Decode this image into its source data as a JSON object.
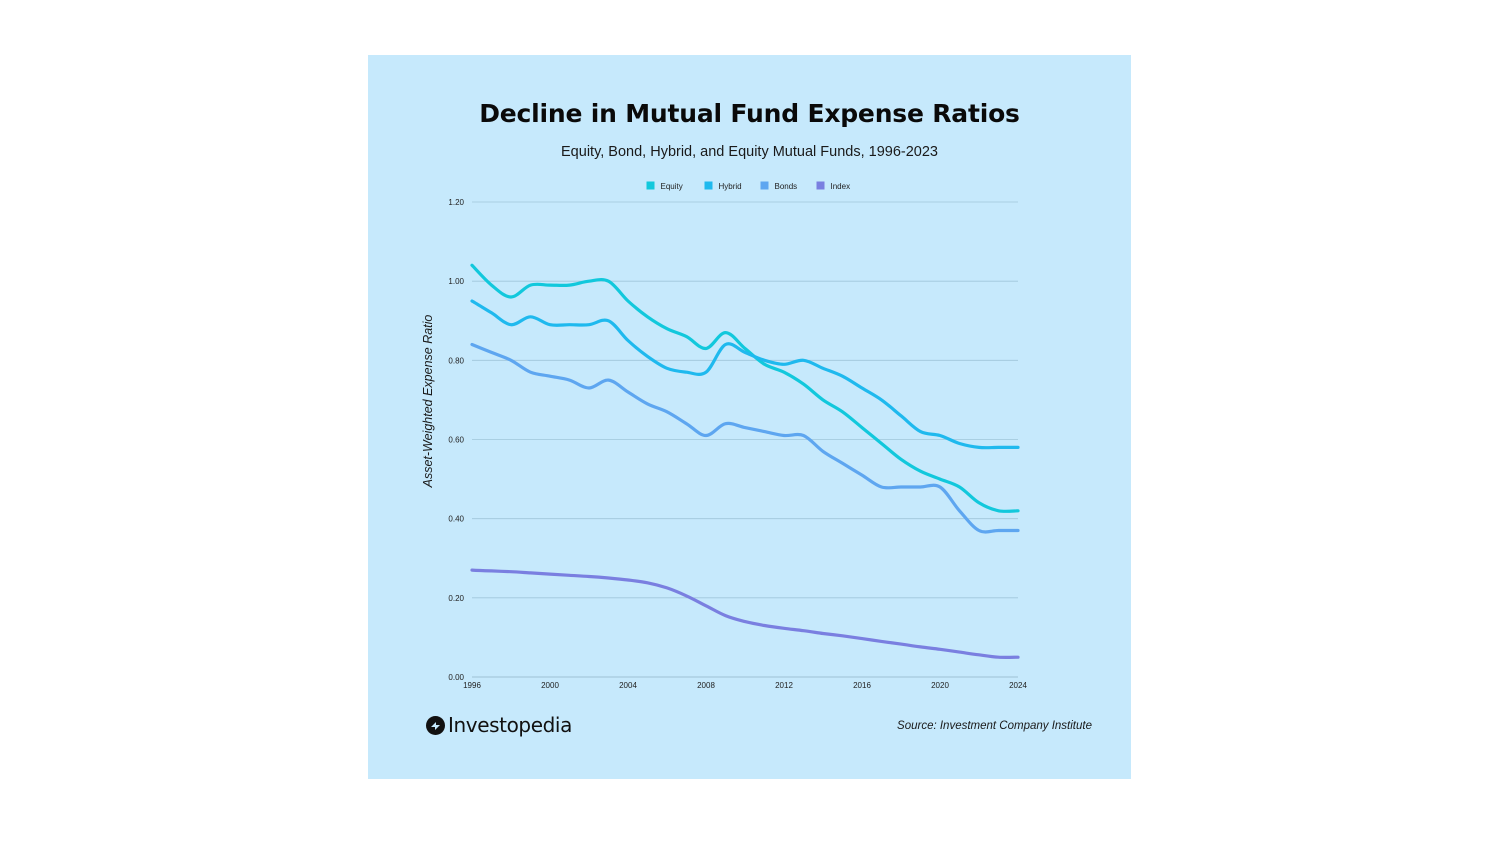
{
  "chart_data": {
    "type": "line",
    "title": "Decline in Mutual Fund Expense Ratios",
    "subtitle": "Equity, Bond, Hybrid, and Equity Mutual Funds, 1996-2023",
    "xlabel": "",
    "ylabel": "Asset-Weighted  Expense Ratio",
    "xlim": [
      1996,
      2024
    ],
    "ylim": [
      0,
      1.2
    ],
    "x_ticks": [
      "1996",
      "2000",
      "2004",
      "2008",
      "2012",
      "2016",
      "2020",
      "2024"
    ],
    "y_ticks": [
      "0.00",
      "0.20",
      "0.40",
      "0.60",
      "0.80",
      "1.00",
      "1.20"
    ],
    "grid": true,
    "legend_position": "top",
    "x": [
      1996,
      1997,
      1998,
      1999,
      2000,
      2001,
      2002,
      2003,
      2004,
      2005,
      2006,
      2007,
      2008,
      2009,
      2010,
      2011,
      2012,
      2013,
      2014,
      2015,
      2016,
      2017,
      2018,
      2019,
      2020,
      2021,
      2022,
      2023,
      2024
    ],
    "series": [
      {
        "name": "Equity",
        "color": "#12c8dc",
        "values": [
          1.04,
          0.99,
          0.96,
          0.99,
          0.99,
          0.99,
          1.0,
          1.0,
          0.95,
          0.91,
          0.88,
          0.86,
          0.83,
          0.87,
          0.83,
          0.79,
          0.77,
          0.74,
          0.7,
          0.67,
          0.63,
          0.59,
          0.55,
          0.52,
          0.5,
          0.48,
          0.44,
          0.42,
          0.42
        ]
      },
      {
        "name": "Hybrid",
        "color": "#1fb9ee",
        "values": [
          0.95,
          0.92,
          0.89,
          0.91,
          0.89,
          0.89,
          0.89,
          0.9,
          0.85,
          0.81,
          0.78,
          0.77,
          0.77,
          0.84,
          0.82,
          0.8,
          0.79,
          0.8,
          0.78,
          0.76,
          0.73,
          0.7,
          0.66,
          0.62,
          0.61,
          0.59,
          0.58,
          0.58,
          0.58
        ]
      },
      {
        "name": "Bonds",
        "color": "#5ea6f0",
        "values": [
          0.84,
          0.82,
          0.8,
          0.77,
          0.76,
          0.75,
          0.73,
          0.75,
          0.72,
          0.69,
          0.67,
          0.64,
          0.61,
          0.64,
          0.63,
          0.62,
          0.61,
          0.61,
          0.57,
          0.54,
          0.51,
          0.48,
          0.48,
          0.48,
          0.48,
          0.42,
          0.37,
          0.37,
          0.37
        ]
      },
      {
        "name": "Index",
        "color": "#7a7fe0",
        "values": [
          0.27,
          0.268,
          0.266,
          0.263,
          0.26,
          0.257,
          0.254,
          0.25,
          0.245,
          0.238,
          0.225,
          0.205,
          0.18,
          0.155,
          0.14,
          0.13,
          0.123,
          0.117,
          0.11,
          0.104,
          0.097,
          0.09,
          0.083,
          0.076,
          0.07,
          0.063,
          0.056,
          0.05,
          0.05
        ]
      }
    ]
  },
  "logo_text": "Investopedia",
  "source_text": "Source: Investment Company Institute"
}
